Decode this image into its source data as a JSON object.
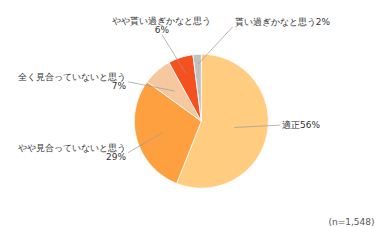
{
  "chart_data": {
    "type": "pie",
    "categories": [
      "適正56%",
      "やや見合っていないと思う\n29%",
      "全く見合っていないと思う\n7%",
      "やや貰い過ぎかなと思う\n6%",
      "貰い過ぎかなと思う2%"
    ],
    "values": [
      56,
      29,
      7,
      6,
      2
    ],
    "colors": [
      "#FFCC80",
      "#FFA040",
      "#F5C8A0",
      "#F4511E",
      "#C0C0C0"
    ],
    "annotations": [
      "(n=1,548)"
    ]
  }
}
